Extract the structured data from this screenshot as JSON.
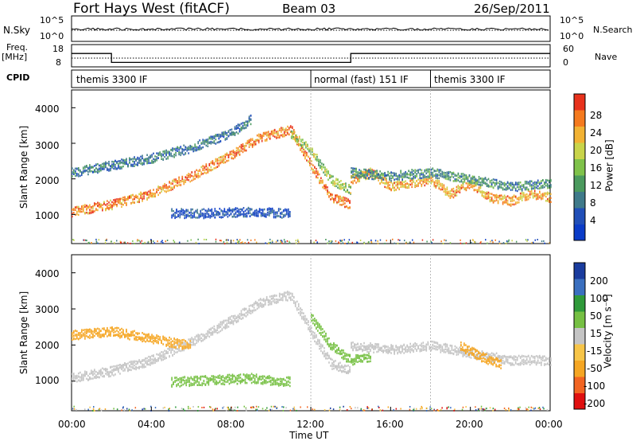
{
  "header": {
    "title": "Fort Hays West (fitACF)",
    "beam": "Beam 03",
    "date": "26/Sep/2011"
  },
  "strips": {
    "nsky_label": "N.Sky",
    "nsky_top": "10^5",
    "nsky_bottom": "10^0",
    "nsearch_label": "N.Search",
    "nsearch_top": "10^5",
    "nsearch_bottom": "10^0",
    "freq_label": "Freq.",
    "freq_unit": "[MHz]",
    "freq_ticks": [
      "18",
      "8"
    ],
    "nave_label": "Nave",
    "nave_ticks": [
      "60",
      "0"
    ],
    "cpid_label": "CPID",
    "cpid_segments": [
      {
        "label": "themis 3300 IF",
        "start_hour": 0,
        "end_hour": 12
      },
      {
        "label": "normal (fast) 151 IF",
        "start_hour": 12,
        "end_hour": 18
      },
      {
        "label": "themis 3300 IF",
        "start_hour": 18,
        "end_hour": 24
      }
    ]
  },
  "axes": {
    "ylabel": "Slant Range [km]",
    "xlabel": "Time UT",
    "x_ticks": [
      "00:00",
      "04:00",
      "08:00",
      "12:00",
      "16:00",
      "20:00",
      "00:00"
    ],
    "y_ticks": [
      "1000",
      "2000",
      "3000",
      "4000"
    ]
  },
  "colorbars": {
    "power_label": "Power [dB]",
    "power_ticks": [
      "28",
      "24",
      "20",
      "16",
      "12",
      "8",
      "4"
    ],
    "velocity_label": "Velocity [m s⁻¹]",
    "velocity_ticks": [
      "200",
      "100",
      "50",
      "15",
      "-15",
      "-50",
      "-100",
      "-200"
    ]
  },
  "chart_data": [
    {
      "type": "line",
      "name": "frequency",
      "x_hours": [
        0,
        2,
        2,
        14,
        14,
        24
      ],
      "y": [
        14,
        14,
        10,
        10,
        14,
        14
      ],
      "ylim": [
        8,
        18
      ]
    },
    {
      "type": "heatmap",
      "name": "power",
      "xlim": [
        0,
        24
      ],
      "ylim": [
        180,
        4500
      ],
      "xlabel": "Time UT",
      "ylabel": "Slant Range [km]",
      "colorbar": "Power [dB]",
      "bands": [
        {
          "x": [
            0,
            2,
            4,
            6,
            8,
            9.5,
            11,
            12,
            13,
            14
          ],
          "y": [
            1100,
            1300,
            1600,
            2100,
            2700,
            3200,
            3400,
            2400,
            1500,
            1300
          ],
          "value": 26
        },
        {
          "x": [
            0,
            2,
            4,
            6,
            8,
            9
          ],
          "y": [
            2200,
            2400,
            2600,
            2900,
            3300,
            3700
          ],
          "value": 10
        },
        {
          "x": [
            11,
            12,
            13,
            14
          ],
          "y": [
            3300,
            2800,
            2000,
            1700
          ],
          "value": 18
        },
        {
          "x": [
            14,
            15,
            16,
            17,
            18,
            19,
            20,
            21,
            22,
            23,
            24
          ],
          "y": [
            2000,
            2200,
            1800,
            1900,
            2000,
            1600,
            1900,
            1500,
            1400,
            1600,
            1500
          ],
          "value": 24
        },
        {
          "x": [
            14,
            16,
            18,
            20,
            22,
            24
          ],
          "y": [
            2200,
            2100,
            2200,
            2000,
            1800,
            1900
          ],
          "value": 12
        },
        {
          "x": [
            5,
            7,
            9,
            11
          ],
          "y": [
            1050,
            1050,
            1100,
            1050
          ],
          "value": 6
        }
      ]
    },
    {
      "type": "heatmap",
      "name": "velocity",
      "xlim": [
        0,
        24
      ],
      "ylim": [
        180,
        4500
      ],
      "xlabel": "Time UT",
      "ylabel": "Slant Range [km]",
      "colorbar": "Velocity [m s⁻¹]",
      "bands": [
        {
          "x": [
            0,
            2,
            4,
            6,
            8,
            9.5,
            11,
            12,
            13,
            14
          ],
          "y": [
            1100,
            1300,
            1600,
            2100,
            2700,
            3200,
            3400,
            2400,
            1500,
            1300
          ],
          "value": 0
        },
        {
          "x": [
            0,
            2,
            4,
            6
          ],
          "y": [
            2300,
            2400,
            2200,
            2000
          ],
          "value": -60
        },
        {
          "x": [
            12,
            13,
            14,
            15
          ],
          "y": [
            2800,
            2000,
            1600,
            1700
          ],
          "value": 30
        },
        {
          "x": [
            14,
            16,
            18,
            20,
            22,
            24
          ],
          "y": [
            2000,
            1900,
            2000,
            1800,
            1600,
            1600
          ],
          "value": 0
        },
        {
          "x": [
            19.5,
            20.5,
            21.5
          ],
          "y": [
            2000,
            1700,
            1500
          ],
          "value": -60
        },
        {
          "x": [
            5,
            7,
            9,
            11
          ],
          "y": [
            1000,
            1050,
            1100,
            1000
          ],
          "value": 40
        }
      ]
    }
  ]
}
